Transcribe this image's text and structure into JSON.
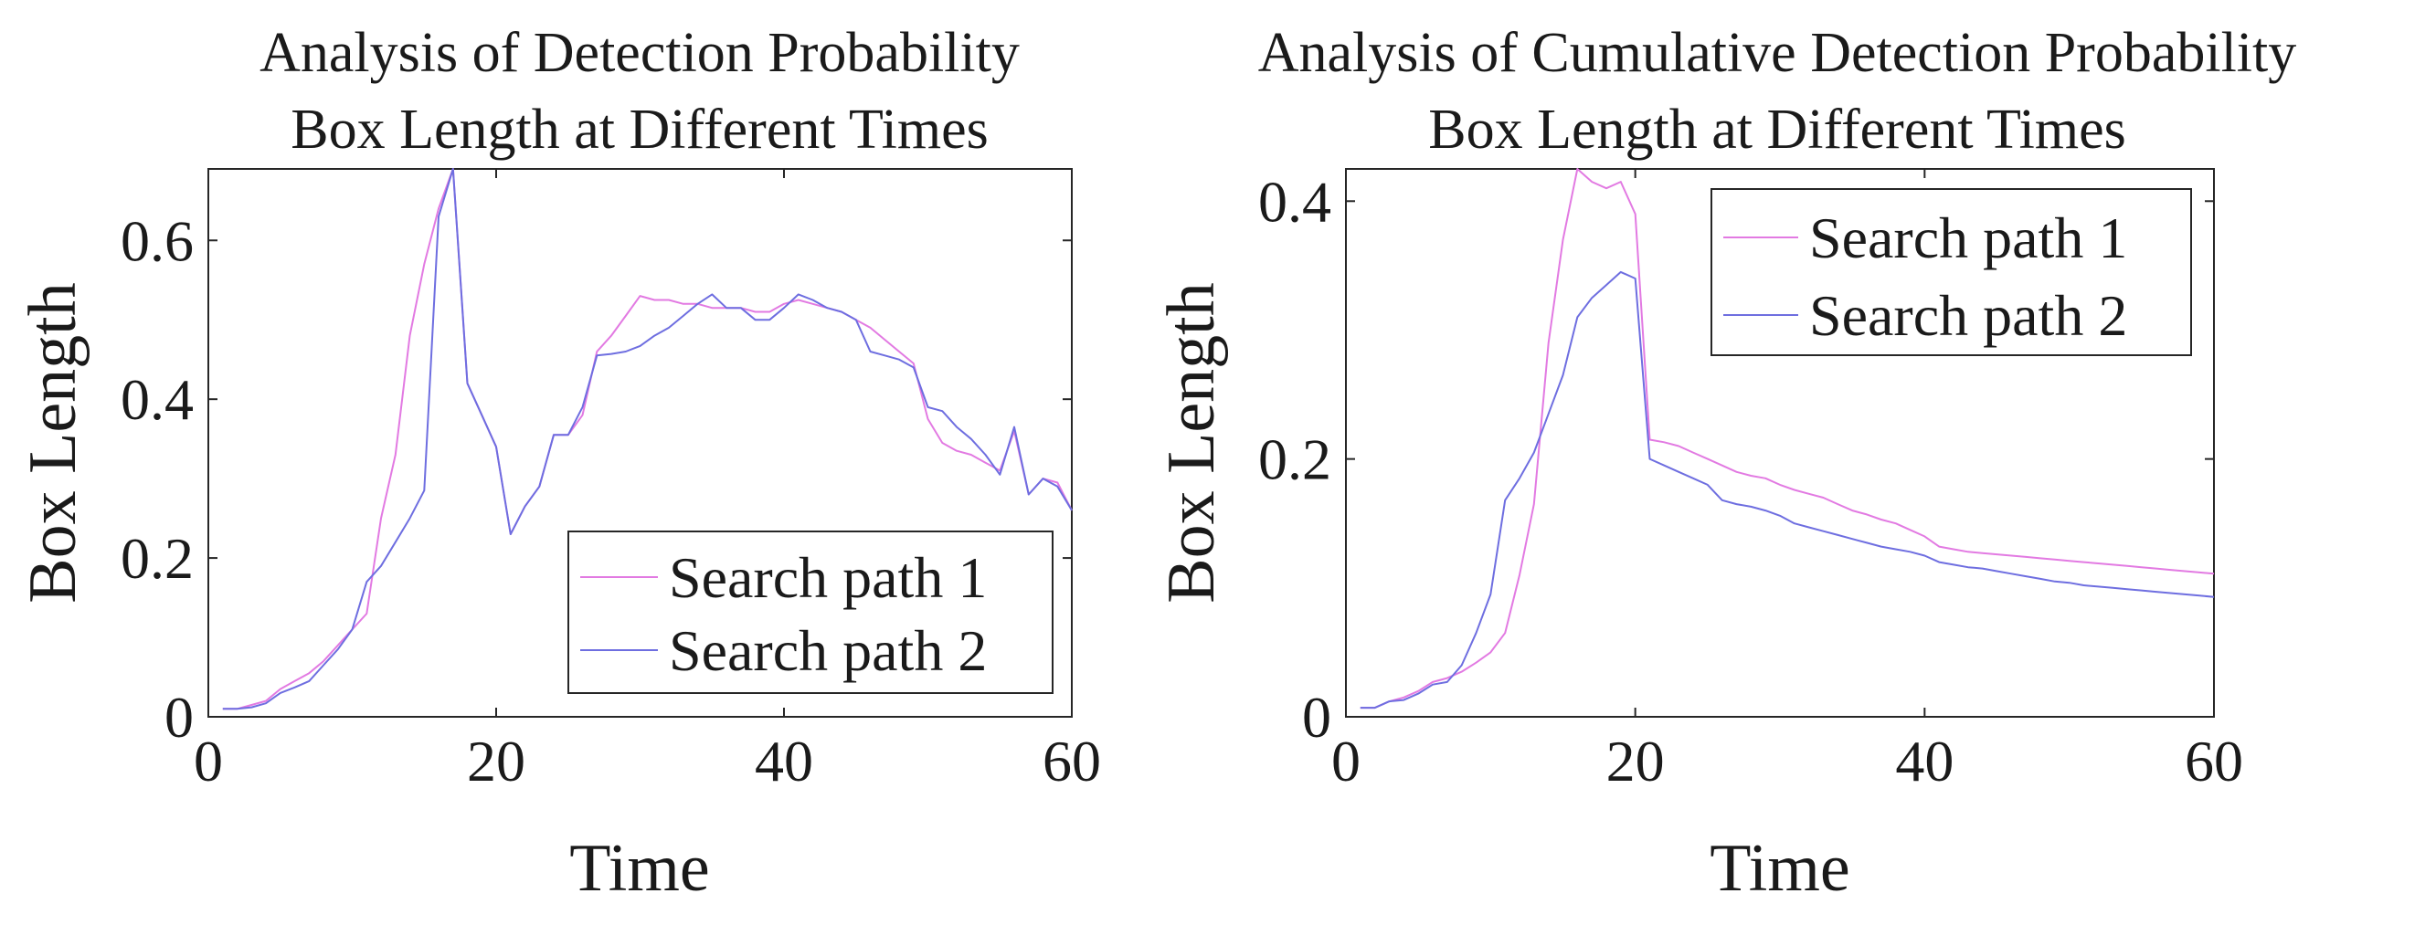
{
  "chart_data": [
    {
      "type": "line",
      "title": "Analysis of Detection Probability",
      "subtitle": "Box Length at Different Times",
      "xlabel": "Time",
      "ylabel": "Box Length",
      "xlim": [
        0,
        60
      ],
      "ylim": [
        0,
        0.69
      ],
      "xticks": [
        0,
        20,
        40,
        60
      ],
      "yticks": [
        0,
        0.2,
        0.4,
        0.6
      ],
      "xtick_labels": [
        "0",
        "20",
        "40",
        "60"
      ],
      "ytick_labels": [
        "0",
        "0.2",
        "0.4",
        "0.6"
      ],
      "grid": false,
      "legend_position": "bottom-right",
      "series": [
        {
          "name": "Search path 1",
          "color": "#e27ae2",
          "x": [
            1,
            2,
            3,
            4,
            5,
            6,
            7,
            8,
            9,
            10,
            11,
            12,
            13,
            14,
            15,
            16,
            17,
            18,
            19,
            20,
            21,
            22,
            23,
            24,
            25,
            26,
            27,
            28,
            29,
            30,
            31,
            32,
            33,
            34,
            35,
            36,
            37,
            38,
            39,
            40,
            41,
            42,
            43,
            44,
            45,
            46,
            47,
            48,
            49,
            50,
            51,
            52,
            53,
            54,
            55,
            56,
            57,
            58,
            59,
            60
          ],
          "y": [
            0.01,
            0.01,
            0.015,
            0.02,
            0.035,
            0.045,
            0.055,
            0.07,
            0.09,
            0.11,
            0.13,
            0.25,
            0.33,
            0.48,
            0.57,
            0.64,
            0.69,
            0.42,
            0.38,
            0.34,
            0.23,
            0.265,
            0.29,
            0.355,
            0.355,
            0.38,
            0.46,
            0.48,
            0.505,
            0.53,
            0.525,
            0.525,
            0.52,
            0.52,
            0.515,
            0.515,
            0.515,
            0.51,
            0.51,
            0.52,
            0.525,
            0.52,
            0.515,
            0.51,
            0.5,
            0.49,
            0.475,
            0.46,
            0.445,
            0.375,
            0.345,
            0.335,
            0.33,
            0.32,
            0.31,
            0.36,
            0.28,
            0.3,
            0.295,
            0.26
          ]
        },
        {
          "name": "Search path 2",
          "color": "#6e6ee0",
          "x": [
            1,
            2,
            3,
            4,
            5,
            6,
            7,
            8,
            9,
            10,
            11,
            12,
            13,
            14,
            15,
            16,
            17,
            18,
            19,
            20,
            21,
            22,
            23,
            24,
            25,
            26,
            27,
            28,
            29,
            30,
            31,
            32,
            33,
            34,
            35,
            36,
            37,
            38,
            39,
            40,
            41,
            42,
            43,
            44,
            45,
            46,
            47,
            48,
            49,
            50,
            51,
            52,
            53,
            54,
            55,
            56,
            57,
            58,
            59,
            60
          ],
          "y": [
            0.01,
            0.01,
            0.012,
            0.017,
            0.03,
            0.037,
            0.045,
            0.065,
            0.085,
            0.11,
            0.17,
            0.19,
            0.22,
            0.25,
            0.285,
            0.63,
            0.69,
            0.42,
            0.38,
            0.34,
            0.23,
            0.265,
            0.29,
            0.355,
            0.355,
            0.39,
            0.455,
            0.457,
            0.46,
            0.467,
            0.48,
            0.49,
            0.505,
            0.52,
            0.532,
            0.515,
            0.515,
            0.5,
            0.5,
            0.515,
            0.532,
            0.525,
            0.515,
            0.51,
            0.5,
            0.46,
            0.455,
            0.45,
            0.44,
            0.39,
            0.385,
            0.365,
            0.35,
            0.33,
            0.305,
            0.365,
            0.28,
            0.3,
            0.29,
            0.26
          ]
        }
      ]
    },
    {
      "type": "line",
      "title": "Analysis of Cumulative Detection Probability",
      "subtitle": "Box Length at Different Times",
      "xlabel": "Time",
      "ylabel": "Box Length",
      "xlim": [
        0,
        60
      ],
      "ylim": [
        0,
        0.425
      ],
      "xticks": [
        0,
        20,
        40,
        60
      ],
      "yticks": [
        0,
        0.2,
        0.4
      ],
      "xtick_labels": [
        "0",
        "20",
        "40",
        "60"
      ],
      "ytick_labels": [
        "0",
        "0.2",
        "0.4"
      ],
      "grid": false,
      "legend_position": "top-right",
      "series": [
        {
          "name": "Search path 1",
          "color": "#e27ae2",
          "x": [
            1,
            2,
            3,
            4,
            5,
            6,
            7,
            8,
            9,
            10,
            11,
            12,
            13,
            14,
            15,
            16,
            17,
            18,
            19,
            20,
            21,
            22,
            23,
            24,
            25,
            26,
            27,
            28,
            29,
            30,
            31,
            32,
            33,
            34,
            35,
            36,
            37,
            38,
            39,
            40,
            41,
            42,
            43,
            44,
            45,
            46,
            47,
            48,
            49,
            50,
            51,
            52,
            53,
            54,
            55,
            56,
            57,
            58,
            59,
            60
          ],
          "y": [
            0.007,
            0.007,
            0.012,
            0.015,
            0.02,
            0.027,
            0.03,
            0.035,
            0.042,
            0.05,
            0.065,
            0.11,
            0.165,
            0.29,
            0.37,
            0.425,
            0.415,
            0.41,
            0.415,
            0.39,
            0.215,
            0.213,
            0.21,
            0.205,
            0.2,
            0.195,
            0.19,
            0.187,
            0.185,
            0.18,
            0.176,
            0.173,
            0.17,
            0.165,
            0.16,
            0.157,
            0.153,
            0.15,
            0.145,
            0.14,
            0.132,
            0.13,
            0.128,
            0.127,
            0.126,
            0.125,
            0.124,
            0.123,
            0.122,
            0.121,
            0.12,
            0.119,
            0.118,
            0.117,
            0.116,
            0.115,
            0.114,
            0.113,
            0.112,
            0.111
          ]
        },
        {
          "name": "Search path 2",
          "color": "#6e6ee0",
          "x": [
            1,
            2,
            3,
            4,
            5,
            6,
            7,
            8,
            9,
            10,
            11,
            12,
            13,
            14,
            15,
            16,
            17,
            18,
            19,
            20,
            21,
            22,
            23,
            24,
            25,
            26,
            27,
            28,
            29,
            30,
            31,
            32,
            33,
            34,
            35,
            36,
            37,
            38,
            39,
            40,
            41,
            42,
            43,
            44,
            45,
            46,
            47,
            48,
            49,
            50,
            51,
            52,
            53,
            54,
            55,
            56,
            57,
            58,
            59,
            60
          ],
          "y": [
            0.007,
            0.007,
            0.012,
            0.013,
            0.018,
            0.025,
            0.027,
            0.04,
            0.065,
            0.095,
            0.168,
            0.185,
            0.205,
            0.235,
            0.265,
            0.31,
            0.325,
            0.335,
            0.345,
            0.34,
            0.2,
            0.195,
            0.19,
            0.185,
            0.18,
            0.168,
            0.165,
            0.163,
            0.16,
            0.156,
            0.15,
            0.147,
            0.144,
            0.141,
            0.138,
            0.135,
            0.132,
            0.13,
            0.128,
            0.125,
            0.12,
            0.118,
            0.116,
            0.115,
            0.113,
            0.111,
            0.109,
            0.107,
            0.105,
            0.104,
            0.102,
            0.101,
            0.1,
            0.099,
            0.098,
            0.097,
            0.096,
            0.095,
            0.094,
            0.093
          ]
        }
      ]
    }
  ]
}
